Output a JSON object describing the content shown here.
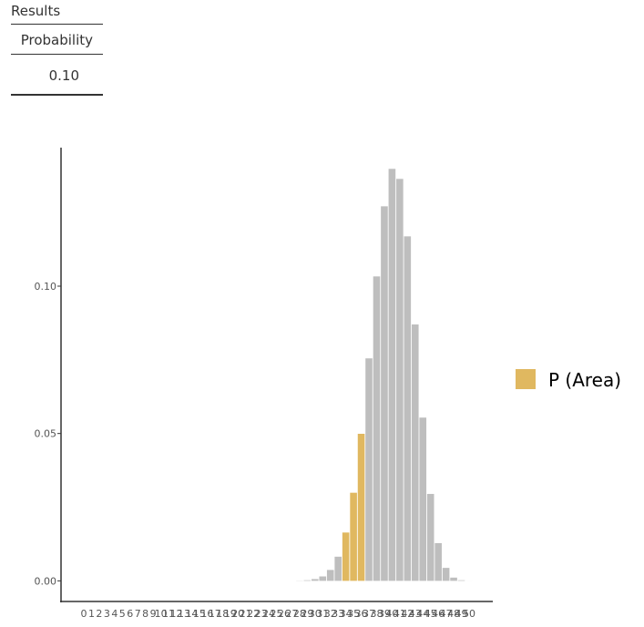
{
  "results": {
    "title": "Results",
    "header": "Probability",
    "rows": [
      [
        "0.10"
      ]
    ]
  },
  "chart_data": {
    "type": "bar",
    "categories": [
      0,
      1,
      2,
      3,
      4,
      5,
      6,
      7,
      8,
      9,
      10,
      11,
      12,
      13,
      14,
      15,
      16,
      17,
      18,
      19,
      20,
      21,
      22,
      23,
      24,
      25,
      26,
      27,
      28,
      29,
      30,
      31,
      32,
      33,
      34,
      35,
      36,
      37,
      38,
      39,
      40,
      41,
      42,
      43,
      44,
      45,
      46,
      47,
      48,
      49,
      50
    ],
    "values": [
      0,
      0,
      0,
      0,
      0,
      0,
      0,
      0,
      0,
      0,
      0,
      0,
      0,
      0,
      0,
      0,
      0,
      0,
      0,
      0,
      0,
      0,
      0,
      0,
      0,
      0,
      0,
      0,
      5e-05,
      0.0002,
      0.0006,
      0.0015,
      0.0037,
      0.0082,
      0.0164,
      0.0299,
      0.0499,
      0.0755,
      0.1033,
      0.1271,
      0.1398,
      0.1364,
      0.1169,
      0.087,
      0.0554,
      0.0295,
      0.0128,
      0.0044,
      0.0011,
      0.0002,
      1e-05
    ],
    "color": "#bebebe",
    "highlight": {
      "name": "P (Area)",
      "color": "#e0b860",
      "range": [
        34,
        36
      ]
    },
    "ylim": [
      -0.007,
      0.147
    ],
    "yticks": [
      {
        "value": 0,
        "label": "0.00"
      },
      {
        "value": 0.05,
        "label": "0.05"
      },
      {
        "value": 0.1,
        "label": "0.10"
      }
    ]
  }
}
